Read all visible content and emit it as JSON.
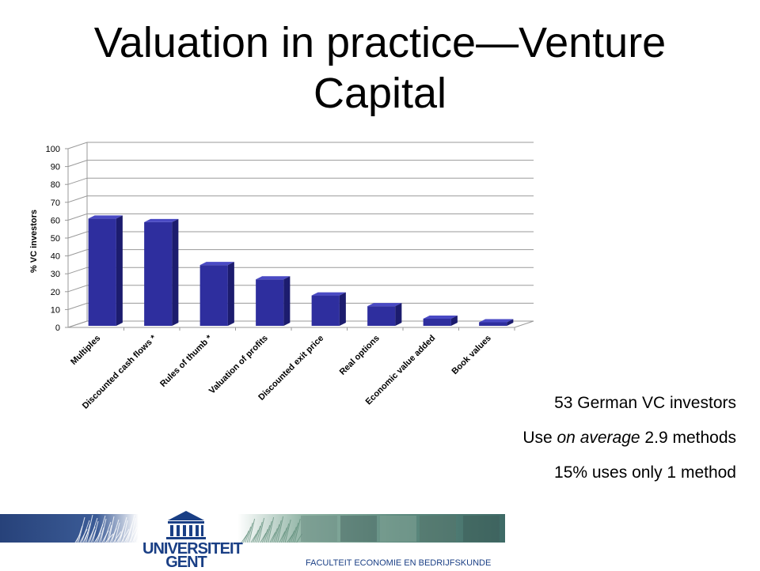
{
  "slide": {
    "title_line1": "Valuation in practice—Venture",
    "title_line2": "Capital",
    "notes": {
      "line1": "53 German VC investors",
      "line2_pre": "Use ",
      "line2_em": "on average",
      "line2_post": " 2.9 methods",
      "line3": "15% uses only 1 method"
    }
  },
  "chart_data": {
    "type": "bar",
    "style": "3d",
    "ylabel": "% VC investors",
    "xlabel": "",
    "ylim": [
      0,
      100
    ],
    "yticks": [
      0,
      10,
      20,
      30,
      40,
      50,
      60,
      70,
      80,
      90,
      100
    ],
    "grid": true,
    "bar_color": "#2e2e9e",
    "categories": [
      "Multiples",
      "Discounted cash flows *",
      "Rules of thumb *",
      "Valuation of profits",
      "Discounted exit price",
      "Real options",
      "Economic value added",
      "Book values"
    ],
    "values": [
      60,
      58,
      34,
      26,
      17,
      11,
      4,
      2
    ]
  },
  "footer": {
    "brand_line1": "UNIVERSITEIT",
    "brand_line2": "GENT",
    "faculty": "FACULTEIT ECONOMIE EN BEDRIJFSKUNDE",
    "logo_icon": "university-building-icon",
    "brand_color": "#1a3f85"
  }
}
